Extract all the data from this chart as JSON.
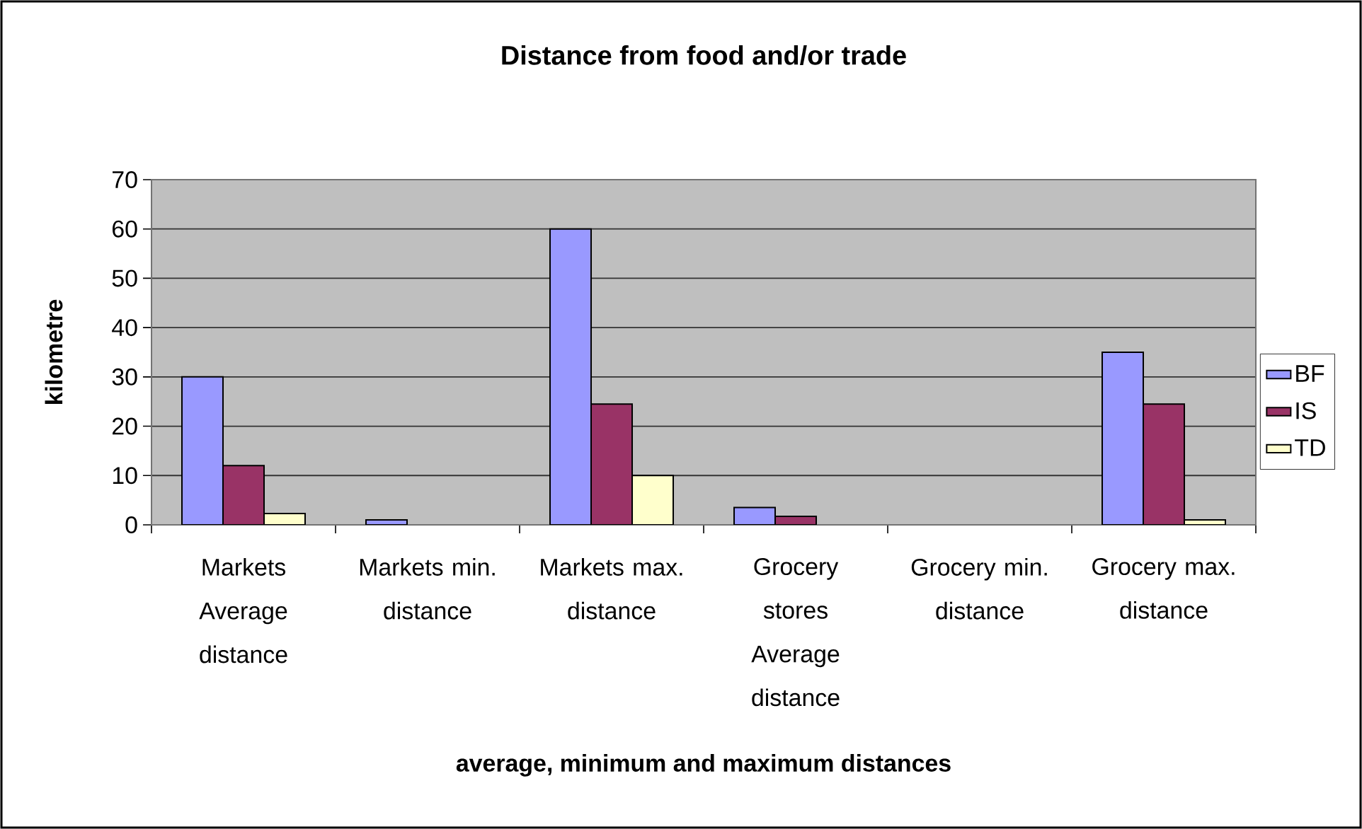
{
  "chart_data": {
    "type": "bar",
    "title": "Distance from food and/or trade",
    "xlabel": "average, minimum and maximum distances",
    "ylabel": "kilometre",
    "categories": [
      "Markets Average distance",
      "Markets min. distance",
      "Markets max. distance",
      "Grocery stores Average distance",
      "Grocery min. distance",
      "Grocery max. distance"
    ],
    "series": [
      {
        "name": "BF",
        "color": "#9999ff",
        "values": [
          30,
          1,
          60,
          3.5,
          null,
          35
        ]
      },
      {
        "name": "IS",
        "color": "#993366",
        "values": [
          12,
          null,
          24.5,
          1.7,
          null,
          24.5
        ]
      },
      {
        "name": "TD",
        "color": "#ffffcc",
        "values": [
          2.3,
          null,
          10,
          null,
          null,
          1
        ]
      }
    ],
    "ylim": [
      0,
      70
    ],
    "yticks": [
      0,
      10,
      20,
      30,
      40,
      50,
      60,
      70
    ],
    "grid": "y",
    "legend": "right"
  }
}
